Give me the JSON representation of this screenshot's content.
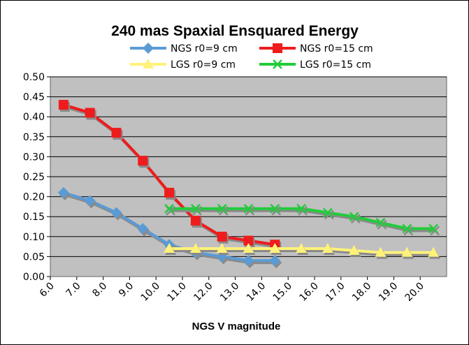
{
  "chart_data": {
    "type": "line",
    "title": "240 mas Spaxial Ensquared Energy",
    "xlabel": "NGS V magnitude",
    "ylabel": "",
    "x_ticks": [
      "6.0",
      "7.0",
      "8.0",
      "9.0",
      "10.0",
      "11.0",
      "12.0",
      "13.0",
      "14.0",
      "15.0",
      "16.0",
      "17.0",
      "18.0",
      "19.0",
      "20.0"
    ],
    "y_ticks": [
      "0.00",
      "0.05",
      "0.10",
      "0.15",
      "0.20",
      "0.25",
      "0.30",
      "0.35",
      "0.40",
      "0.45",
      "0.50"
    ],
    "xlim": [
      6.0,
      21.0
    ],
    "ylim": [
      0.0,
      0.5
    ],
    "grid": "horizontal",
    "legend_position": "top",
    "series": [
      {
        "name": "NGS r0=9 cm",
        "color": "#5b9bd5",
        "marker": "diamond",
        "x": [
          6.5,
          7.5,
          8.5,
          9.5,
          10.5,
          11.5,
          12.5,
          13.5,
          14.5
        ],
        "y": [
          0.21,
          0.19,
          0.16,
          0.12,
          0.08,
          0.06,
          0.05,
          0.04,
          0.04
        ]
      },
      {
        "name": "NGS r0=15 cm",
        "color": "#ee1c1c",
        "marker": "square",
        "x": [
          6.5,
          7.5,
          8.5,
          9.5,
          10.5,
          11.5,
          12.5,
          13.5,
          14.5
        ],
        "y": [
          0.43,
          0.41,
          0.36,
          0.29,
          0.21,
          0.14,
          0.1,
          0.09,
          0.08
        ]
      },
      {
        "name": "LGS r0=9 cm",
        "color": "#fff27a",
        "marker": "triangle",
        "x": [
          10.5,
          11.5,
          12.5,
          13.5,
          14.5,
          15.5,
          16.5,
          17.5,
          18.5,
          19.5,
          20.5
        ],
        "y": [
          0.07,
          0.07,
          0.07,
          0.07,
          0.07,
          0.07,
          0.07,
          0.065,
          0.06,
          0.06,
          0.06
        ]
      },
      {
        "name": "LGS r0=15 cm",
        "color": "#22cc3a",
        "marker": "x",
        "x": [
          10.5,
          11.5,
          12.5,
          13.5,
          14.5,
          15.5,
          16.5,
          17.5,
          18.5,
          19.5,
          20.5
        ],
        "y": [
          0.17,
          0.17,
          0.17,
          0.17,
          0.17,
          0.17,
          0.16,
          0.15,
          0.135,
          0.12,
          0.12
        ]
      }
    ]
  }
}
